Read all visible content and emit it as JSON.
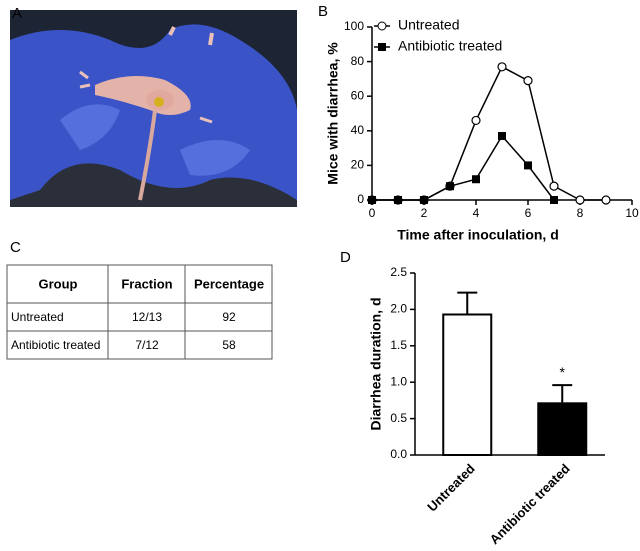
{
  "panels": [
    "A",
    "B",
    "C",
    "D"
  ],
  "chart_data": [
    {
      "type": "line",
      "xlabel": "Time after inoculation, d",
      "ylabel": "Mice with diarrhea, %",
      "x": [
        0,
        1,
        2,
        3,
        4,
        5,
        6,
        7,
        8,
        9
      ],
      "series": [
        {
          "name": "Untreated",
          "color": "#000000",
          "marker": "circle",
          "values": [
            0,
            0,
            0,
            8,
            46,
            77,
            69,
            8,
            0,
            0
          ]
        },
        {
          "name": "Antibiotic treated",
          "color": "#000000",
          "marker": "square",
          "values": [
            0,
            0,
            0,
            8,
            12,
            37,
            20,
            0,
            null,
            null
          ]
        }
      ],
      "xlim": [
        0,
        10
      ],
      "xticks": [
        0,
        2,
        4,
        6,
        8,
        10
      ],
      "ylim": [
        0,
        100
      ],
      "yticks": [
        0,
        20,
        40,
        60,
        80,
        100
      ],
      "legend": "upper left"
    },
    {
      "type": "bar",
      "ylabel": "Diarrhea duration, d",
      "categories": [
        "Untreated",
        "Antibiotic treated"
      ],
      "values": [
        1.93,
        0.71
      ],
      "errors": [
        0.3,
        0.25
      ],
      "colors": [
        "#ffffff",
        "#000000"
      ],
      "ylim": [
        0,
        2.5
      ],
      "yticks": [
        {
          "value": 0,
          "label": "0.0"
        },
        0.5,
        {
          "value": 1,
          "label": "1.0"
        },
        1.5,
        {
          "value": 2,
          "label": "2.0"
        },
        2.5
      ],
      "annotations": [
        {
          "text": "*",
          "category": "Antibiotic treated"
        }
      ]
    }
  ],
  "table": {
    "header": [
      "Group",
      "Fraction",
      "Percentage"
    ],
    "rows": [
      [
        "Untreated",
        "12/13",
        92
      ],
      [
        "Antibiotic treated",
        "7/12",
        58
      ]
    ]
  }
}
